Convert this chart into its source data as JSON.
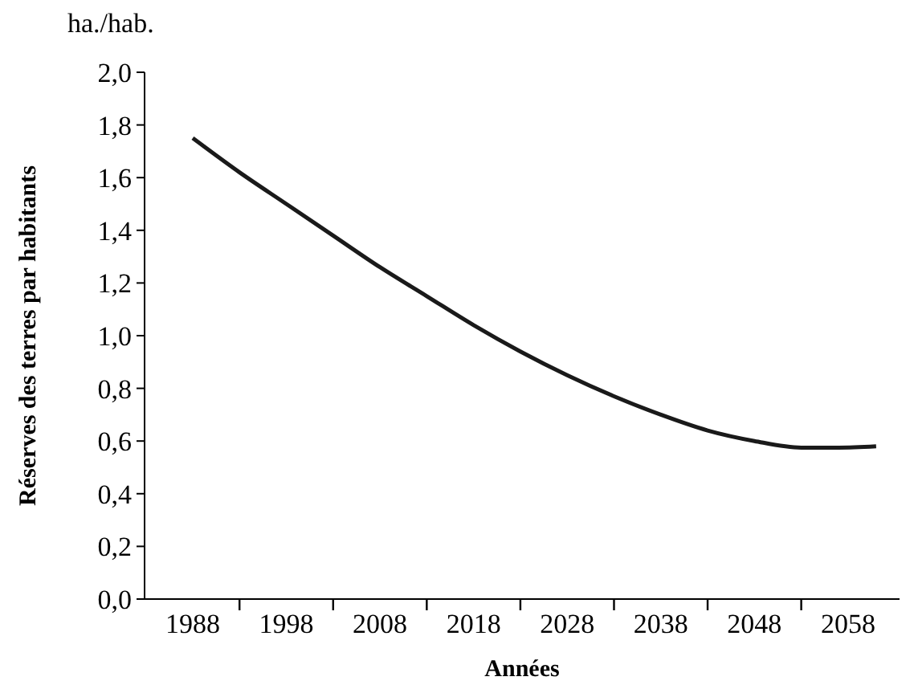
{
  "chart_data": {
    "type": "line",
    "xlabel": "Années",
    "ylabel": "Réserves des terres par habitants",
    "annotations": [
      "ha./hab."
    ],
    "xlim": [
      1982,
      2063.5
    ],
    "xticks": [
      {
        "value": 1988,
        "label": "1988"
      },
      {
        "value": 1993,
        "label": null
      },
      {
        "value": 1998,
        "label": "1998"
      },
      {
        "value": 2003,
        "label": null
      },
      {
        "value": 2008,
        "label": "2008"
      },
      {
        "value": 2013,
        "label": null
      },
      {
        "value": 2018,
        "label": "2018"
      },
      {
        "value": 2023,
        "label": null
      },
      {
        "value": 2028,
        "label": "2028"
      },
      {
        "value": 2033,
        "label": null
      },
      {
        "value": 2038,
        "label": "2038"
      },
      {
        "value": 2043,
        "label": null
      },
      {
        "value": 2048,
        "label": "2048"
      },
      {
        "value": 2053,
        "label": null
      },
      {
        "value": 2058,
        "label": "2058"
      }
    ],
    "ylim": [
      0,
      2
    ],
    "yticks": [
      {
        "value": 0,
        "label": "0,0"
      },
      {
        "value": 0.2,
        "label": "0,2"
      },
      {
        "value": 0.4,
        "label": "0,4"
      },
      {
        "value": 0.6,
        "label": "0,6"
      },
      {
        "value": 0.8,
        "label": "0,8"
      },
      {
        "value": 1,
        "label": "1,0"
      },
      {
        "value": 1.2,
        "label": "1,2"
      },
      {
        "value": 1.4,
        "label": "1,4"
      },
      {
        "value": 1.6,
        "label": "1,6"
      },
      {
        "value": 1.8,
        "label": "1,8"
      },
      {
        "value": 2,
        "label": "2,0"
      }
    ],
    "grid": false,
    "marker": "none",
    "line_style": "solid",
    "series": [
      {
        "color": "#1a1a1a",
        "x": [
          1988,
          1993,
          1998,
          2003,
          2008,
          2013,
          2018,
          2023,
          2028,
          2033,
          2038,
          2043,
          2048,
          2053,
          2057,
          2061
        ],
        "values": [
          1.75,
          1.62,
          1.5,
          1.38,
          1.26,
          1.15,
          1.04,
          0.94,
          0.85,
          0.77,
          0.7,
          0.64,
          0.6,
          0.575,
          0.575,
          0.58
        ]
      }
    ]
  }
}
